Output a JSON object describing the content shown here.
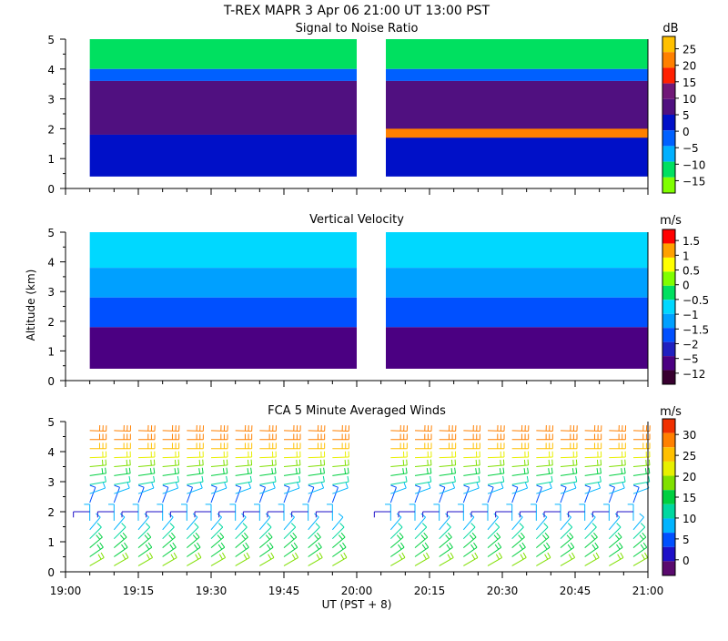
{
  "header": {
    "title": "T-REX   MAPR   3 Apr 06   21:00 UT   13:00   PST"
  },
  "colors": {
    "white": "#ffffff",
    "snr": [
      "#80ff00",
      "#00e060",
      "#00b0ff",
      "#0060ff",
      "#0010c8",
      "#501080",
      "#701878",
      "#ff2000",
      "#ff8000",
      "#ffc000"
    ],
    "vel": [
      "#380030",
      "#4b0082",
      "#2020c0",
      "#0050ff",
      "#00a0ff",
      "#00d8ff",
      "#00e060",
      "#80ff00",
      "#ffff00",
      "#ffa000",
      "#ff0000"
    ],
    "wind": [
      "#5a0a6e",
      "#1e10c8",
      "#0050ff",
      "#00b4ff",
      "#00d8a0",
      "#00d040",
      "#80e000",
      "#e8f000",
      "#ffc000",
      "#ff8000",
      "#f03000"
    ]
  },
  "chart_data": [
    {
      "type": "heatmap",
      "title": "Signal to Noise Ratio",
      "xlabel": "",
      "ylabel": "",
      "xlim": [
        "19:00",
        "21:00"
      ],
      "ylim": [
        0,
        5
      ],
      "y_ticks": [
        "0",
        "1",
        "2",
        "3",
        "4",
        "5"
      ],
      "data_gap": [
        "20:00",
        "20:06"
      ],
      "colorbar": {
        "unit": "dB",
        "labels": [
          "25",
          "20",
          "15",
          "10",
          "5",
          "0",
          "−5",
          "−10",
          "−15"
        ],
        "range": [
          -20,
          30
        ]
      },
      "regions": [
        {
          "from_alt": 4.0,
          "to_alt": 5.0,
          "value": -10
        },
        {
          "from_alt": 3.6,
          "to_alt": 4.0,
          "value": 0
        },
        {
          "from_alt": 1.8,
          "to_alt": 3.6,
          "value": 10
        },
        {
          "from_alt": 0.4,
          "to_alt": 1.8,
          "value": 5
        },
        {
          "from_alt": 1.7,
          "to_alt": 2.0,
          "value": 18,
          "from_time": "20:06",
          "to_time": "21:00"
        }
      ]
    },
    {
      "type": "heatmap",
      "title": "Vertical Velocity",
      "xlabel": "",
      "ylabel": "Altitude (km)",
      "xlim": [
        "19:00",
        "21:00"
      ],
      "ylim": [
        0,
        5
      ],
      "y_ticks": [
        "0",
        "1",
        "2",
        "3",
        "4",
        "5"
      ],
      "data_gap": [
        "20:00",
        "20:06"
      ],
      "colorbar": {
        "unit": "m/s",
        "labels": [
          "1.5",
          "1",
          "0.5",
          "0",
          "−0.5",
          "−1",
          "−1.5",
          "−2",
          "−5",
          "−12"
        ]
      },
      "regions": [
        {
          "from_alt": 3.8,
          "to_alt": 5.0,
          "value": -0.5
        },
        {
          "from_alt": 2.8,
          "to_alt": 3.8,
          "value": -1
        },
        {
          "from_alt": 1.8,
          "to_alt": 2.8,
          "value": -1.5
        },
        {
          "from_alt": 0.4,
          "to_alt": 1.8,
          "value": -5
        }
      ]
    },
    {
      "type": "scatter",
      "title": "FCA 5 Minute Averaged Winds",
      "xlabel": "UT  (PST + 8)",
      "ylabel": "",
      "xlim": [
        "19:00",
        "21:00"
      ],
      "ylim": [
        0,
        5
      ],
      "x_ticks": [
        "19:00",
        "19:15",
        "19:30",
        "19:45",
        "20:00",
        "20:15",
        "20:30",
        "20:45",
        "21:00"
      ],
      "y_ticks": [
        "0",
        "1",
        "2",
        "3",
        "4",
        "5"
      ],
      "colorbar": {
        "unit": "m/s",
        "labels": [
          "30",
          "25",
          "20",
          "15",
          "10",
          "5",
          "0"
        ],
        "range": [
          0,
          32
        ]
      },
      "profile_times": [
        "19:05",
        "19:10",
        "19:15",
        "19:20",
        "19:25",
        "19:30",
        "19:35",
        "19:40",
        "19:45",
        "19:50",
        "19:55",
        "20:07",
        "20:12",
        "20:17",
        "20:22",
        "20:27",
        "20:32",
        "20:37",
        "20:42",
        "20:47",
        "20:52",
        "20:57"
      ],
      "altitudes_km": [
        0.2,
        0.5,
        0.8,
        1.1,
        1.4,
        1.7,
        2.0,
        2.3,
        2.6,
        2.9,
        3.2,
        3.5,
        3.8,
        4.1,
        4.4,
        4.7
      ],
      "speed_profile_m_s": [
        18,
        16,
        15,
        13,
        11,
        8,
        4,
        5,
        9,
        13,
        17,
        20,
        23,
        26,
        28,
        29
      ],
      "direction_profile_deg": [
        240,
        235,
        230,
        225,
        220,
        180,
        90,
        200,
        250,
        260,
        262,
        265,
        268,
        270,
        270,
        272
      ]
    }
  ]
}
